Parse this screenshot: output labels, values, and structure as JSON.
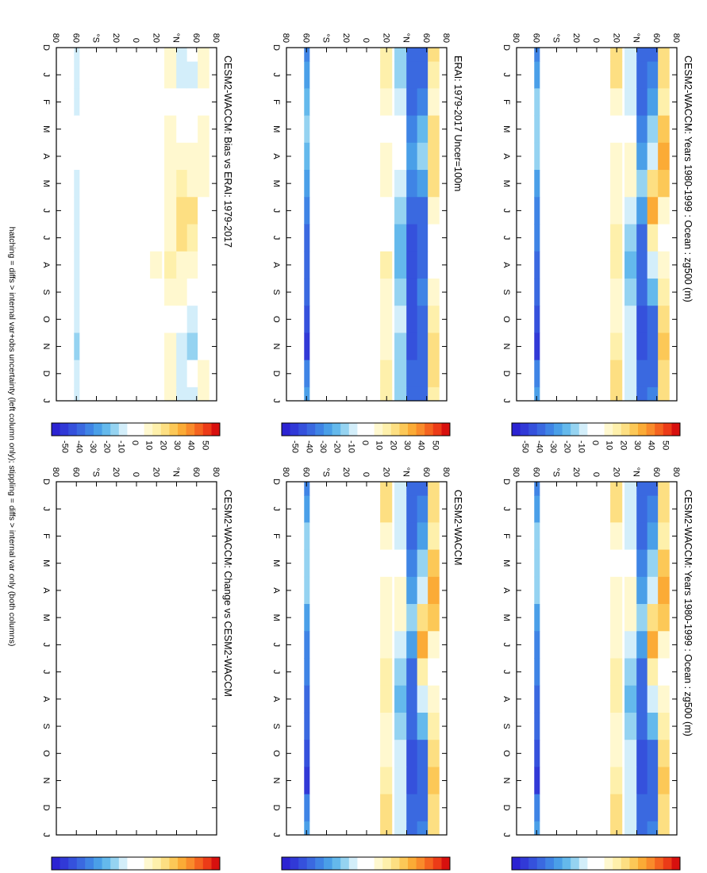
{
  "figure": {
    "footnote": "hatching = diffs > internal var+obs uncertainty (left column only); stippling = diffs > internal var only (both columns)",
    "colorbar_ticks": [
      "50",
      "40",
      "30",
      "20",
      "10",
      "0",
      "-10",
      "-20",
      "-30",
      "-40",
      "-50"
    ],
    "colorbar_colors": [
      "#d8100e",
      "#ec3b17",
      "#f4631f",
      "#f98b2b",
      "#fbab36",
      "#fcc857",
      "#fddf82",
      "#fef0ab",
      "#fff8cf",
      "#ffffff",
      "#ffffff",
      "#d3eefa",
      "#95d3f1",
      "#64b9ec",
      "#4a9fe8",
      "#3f84e5",
      "#3a69e0",
      "#3551dc",
      "#3139d7",
      "#2c23d2"
    ],
    "month_labels": [
      "D",
      "J",
      "F",
      "M",
      "A",
      "M",
      "J",
      "J",
      "A",
      "S",
      "O",
      "N",
      "D",
      "J"
    ],
    "lat_labels": [
      "80",
      "60",
      "°N",
      "20",
      "0",
      "20",
      "°S",
      "60",
      "80"
    ]
  },
  "chart_data": [
    {
      "type": "heatmap",
      "panel": "top-left",
      "title": "CESM2-WACCM: Years 1980-1999 : Ocean : zg500 (m)",
      "x": [
        "J",
        "F",
        "M",
        "A",
        "M",
        "J",
        "J",
        "A",
        "S",
        "O",
        "N",
        "D"
      ],
      "y": [
        "80N",
        "60N",
        "40N",
        "20N",
        "0",
        "20S",
        "40S",
        "60S",
        "80S"
      ],
      "bands": [
        {
          "lat": "75N",
          "values": [
            18,
            14,
            22,
            28,
            24,
            8,
            4,
            6,
            14,
            18,
            22,
            20
          ]
        },
        {
          "lat": "62N",
          "values": [
            -28,
            -22,
            -12,
            -8,
            18,
            30,
            14,
            -6,
            -18,
            -30,
            -34,
            -30
          ]
        },
        {
          "lat": "50N",
          "values": [
            -32,
            -30,
            -26,
            -20,
            -14,
            -22,
            -30,
            -32,
            -34,
            -38,
            -36,
            -34
          ]
        },
        {
          "lat": "38N",
          "values": [
            -8,
            -6,
            4,
            6,
            8,
            -6,
            -14,
            -18,
            -10,
            -6,
            -8,
            -8
          ]
        },
        {
          "lat": "22N",
          "values": [
            16,
            10,
            4,
            6,
            8,
            10,
            12,
            14,
            10,
            8,
            12,
            16
          ]
        },
        {
          "lat": "67S",
          "values": [
            -20,
            -14,
            -10,
            -14,
            -20,
            -26,
            -28,
            -30,
            -32,
            -36,
            -40,
            -26
          ]
        }
      ],
      "zlim": [
        -50,
        50
      ]
    },
    {
      "type": "heatmap",
      "panel": "top-right",
      "title": "CESM2-WACCM: Years 1980-1999 : Ocean : zg500 (m)",
      "x": [
        "J",
        "F",
        "M",
        "A",
        "M",
        "J",
        "J",
        "A",
        "S",
        "O",
        "N",
        "D"
      ],
      "bands": [
        {
          "lat": "75N",
          "values": [
            18,
            14,
            22,
            28,
            24,
            8,
            4,
            6,
            14,
            18,
            22,
            20
          ]
        },
        {
          "lat": "62N",
          "values": [
            -28,
            -22,
            -12,
            -8,
            18,
            30,
            14,
            -6,
            -18,
            -30,
            -34,
            -30
          ]
        },
        {
          "lat": "50N",
          "values": [
            -32,
            -30,
            -26,
            -20,
            -14,
            -22,
            -30,
            -32,
            -34,
            -38,
            -36,
            -34
          ]
        },
        {
          "lat": "38N",
          "values": [
            -8,
            -6,
            4,
            6,
            8,
            -6,
            -14,
            -18,
            -10,
            -6,
            -8,
            -8
          ]
        },
        {
          "lat": "22N",
          "values": [
            16,
            10,
            4,
            6,
            8,
            10,
            12,
            14,
            10,
            8,
            12,
            16
          ]
        },
        {
          "lat": "67S",
          "values": [
            -20,
            -14,
            -10,
            -14,
            -20,
            -26,
            -28,
            -30,
            -32,
            -36,
            -40,
            -26
          ]
        }
      ],
      "zlim": [
        -50,
        50
      ]
    },
    {
      "type": "heatmap",
      "panel": "middle-left",
      "title": "ERAI: 1979-2017 Uncer=100m",
      "x": [
        "J",
        "F",
        "M",
        "A",
        "M",
        "J",
        "J",
        "A",
        "S",
        "O",
        "N",
        "D"
      ],
      "bands": [
        {
          "lat": "75N",
          "values": [
            14,
            10,
            16,
            20,
            18,
            6,
            2,
            4,
            10,
            14,
            18,
            16
          ]
        },
        {
          "lat": "62N",
          "values": [
            -30,
            -26,
            -18,
            -12,
            -20,
            -32,
            -34,
            -30,
            -26,
            -32,
            -34,
            -30
          ]
        },
        {
          "lat": "50N",
          "values": [
            -34,
            -32,
            -28,
            -24,
            -26,
            -32,
            -36,
            -36,
            -36,
            -38,
            -36,
            -34
          ]
        },
        {
          "lat": "38N",
          "values": [
            -10,
            -8,
            -4,
            -4,
            -6,
            -14,
            -18,
            -16,
            -10,
            -8,
            -10,
            -10
          ]
        },
        {
          "lat": "22N",
          "values": [
            12,
            8,
            4,
            6,
            6,
            4,
            4,
            12,
            10,
            8,
            10,
            12
          ]
        },
        {
          "lat": "67S",
          "values": [
            -22,
            -16,
            -12,
            -16,
            -22,
            -28,
            -30,
            -32,
            -34,
            -38,
            -42,
            -28
          ]
        }
      ],
      "zlim": [
        -50,
        50
      ]
    },
    {
      "type": "heatmap",
      "panel": "middle-right",
      "title": "CESM2-WACCM",
      "x": [
        "J",
        "F",
        "M",
        "A",
        "M",
        "J",
        "J",
        "A",
        "S",
        "O",
        "N",
        "D"
      ],
      "bands": [
        {
          "lat": "75N",
          "values": [
            18,
            14,
            22,
            28,
            24,
            8,
            4,
            6,
            14,
            18,
            22,
            20
          ]
        },
        {
          "lat": "62N",
          "values": [
            -28,
            -22,
            -12,
            -8,
            18,
            30,
            14,
            -6,
            -18,
            -30,
            -34,
            -30
          ]
        },
        {
          "lat": "50N",
          "values": [
            -32,
            -30,
            -26,
            -20,
            -14,
            -22,
            -30,
            -32,
            -34,
            -38,
            -36,
            -34
          ]
        },
        {
          "lat": "38N",
          "values": [
            -8,
            -6,
            4,
            6,
            8,
            -6,
            -14,
            -18,
            -10,
            -6,
            -8,
            -8
          ]
        },
        {
          "lat": "22N",
          "values": [
            16,
            10,
            4,
            6,
            8,
            10,
            12,
            14,
            10,
            8,
            12,
            16
          ]
        },
        {
          "lat": "67S",
          "values": [
            -20,
            -14,
            -10,
            -14,
            -20,
            -26,
            -28,
            -30,
            -32,
            -36,
            -40,
            -26
          ]
        }
      ],
      "zlim": [
        -50,
        50
      ]
    },
    {
      "type": "heatmap",
      "panel": "bottom-left",
      "title": "CESM2-WACCM: Bias vs ERAI: 1979-2017",
      "x": [
        "J",
        "F",
        "M",
        "A",
        "M",
        "J",
        "J",
        "A",
        "S",
        "O",
        "N",
        "D"
      ],
      "bands": [
        {
          "lat": "75N",
          "values": [
            8,
            4,
            6,
            8,
            6,
            2,
            2,
            2,
            4,
            4,
            4,
            6
          ]
        },
        {
          "lat": "62N",
          "values": [
            -8,
            -4,
            4,
            6,
            10,
            16,
            14,
            6,
            4,
            -6,
            -10,
            -4
          ]
        },
        {
          "lat": "50N",
          "values": [
            -6,
            -4,
            4,
            8,
            12,
            18,
            16,
            8,
            6,
            -4,
            -8,
            -6
          ]
        },
        {
          "lat": "38N",
          "values": [
            6,
            4,
            6,
            8,
            8,
            10,
            10,
            12,
            8,
            4,
            6,
            8
          ]
        },
        {
          "lat": "22N",
          "values": [
            4,
            2,
            0,
            2,
            2,
            4,
            4,
            6,
            2,
            0,
            2,
            4
          ]
        },
        {
          "lat": "67S",
          "values": [
            -8,
            -6,
            -4,
            -4,
            -6,
            -8,
            -8,
            -6,
            -6,
            -8,
            -10,
            -8
          ]
        }
      ],
      "zlim": [
        -50,
        50
      ]
    },
    {
      "type": "heatmap",
      "panel": "bottom-right",
      "title": "CESM2-WACCM: Change vs CESM2-WACCM",
      "x": [
        "J",
        "F",
        "M",
        "A",
        "M",
        "J",
        "J",
        "A",
        "S",
        "O",
        "N",
        "D"
      ],
      "bands": [],
      "zlim": [
        -50,
        50
      ]
    }
  ]
}
